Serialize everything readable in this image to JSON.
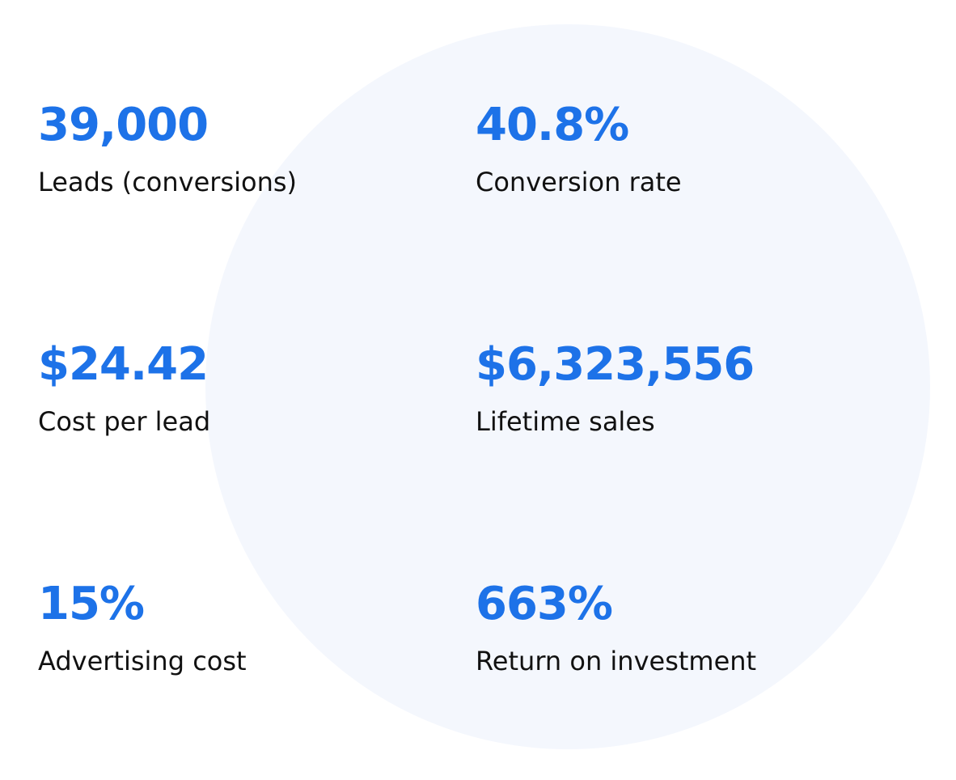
{
  "stats": [
    {
      "value": "39,000",
      "label": "Leads (conversions)"
    },
    {
      "value": "40.8%",
      "label": "Conversion rate"
    },
    {
      "value": "$24.42",
      "label": "Cost per lead"
    },
    {
      "value": "$6,323,556",
      "label": "Lifetime sales"
    },
    {
      "value": "15%",
      "label": "Advertising cost"
    },
    {
      "value": "663%",
      "label": "Return on investment"
    }
  ]
}
